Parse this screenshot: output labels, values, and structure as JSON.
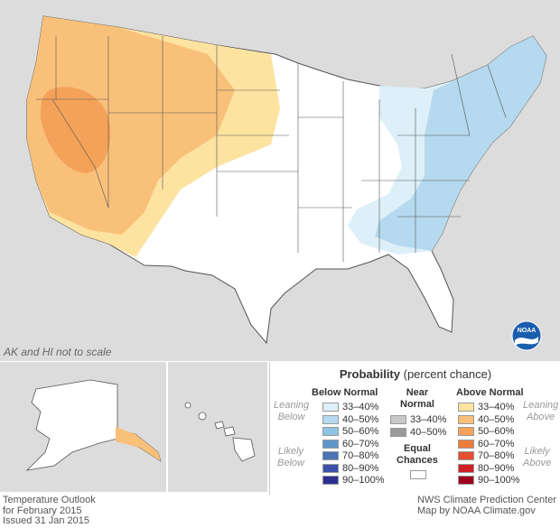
{
  "map": {
    "note": "AK and HI not to scale",
    "logo_text": "NOAA"
  },
  "legend": {
    "title_bold": "Probability",
    "title_rest": "(percent chance)",
    "below_header": "Below Normal",
    "near_header_line1": "Near",
    "near_header_line2": "Normal",
    "above_header": "Above Normal",
    "leaning_below": [
      "Leaning",
      "Below"
    ],
    "likely_below": [
      "Likely",
      "Below"
    ],
    "leaning_above": [
      "Leaning",
      "Above"
    ],
    "likely_above": [
      "Likely",
      "Above"
    ],
    "below_items": [
      {
        "label": "33–40%",
        "color": "#ddeff8"
      },
      {
        "label": "40–50%",
        "color": "#b5d9ee"
      },
      {
        "label": "50–60%",
        "color": "#8ec3e3"
      },
      {
        "label": "60–70%",
        "color": "#5f96cc"
      },
      {
        "label": "70–80%",
        "color": "#4a73b8"
      },
      {
        "label": "80–90%",
        "color": "#3a50a8"
      },
      {
        "label": "90–100%",
        "color": "#2c2f8f"
      }
    ],
    "near_items": [
      {
        "label": "33–40%",
        "color": "#c8c8c8"
      },
      {
        "label": "40–50%",
        "color": "#9a9a9a"
      }
    ],
    "equal_line1": "Equal",
    "equal_line2": "Chances",
    "above_items": [
      {
        "label": "33–40%",
        "color": "#fde3a0"
      },
      {
        "label": "40–50%",
        "color": "#f9c07a"
      },
      {
        "label": "50–60%",
        "color": "#f4a259"
      },
      {
        "label": "60–70%",
        "color": "#ee7d3b"
      },
      {
        "label": "70–80%",
        "color": "#e45030"
      },
      {
        "label": "80–90%",
        "color": "#d21f26"
      },
      {
        "label": "90–100%",
        "color": "#a0001f"
      }
    ]
  },
  "footer": {
    "left_line1": "Temperature Outlook",
    "left_line2": "for February 2015",
    "left_line3": "Issued 31 Jan 2015",
    "right_line1": "NWS Climate Prediction Center",
    "right_line2": "Map by NOAA Climate.gov"
  }
}
